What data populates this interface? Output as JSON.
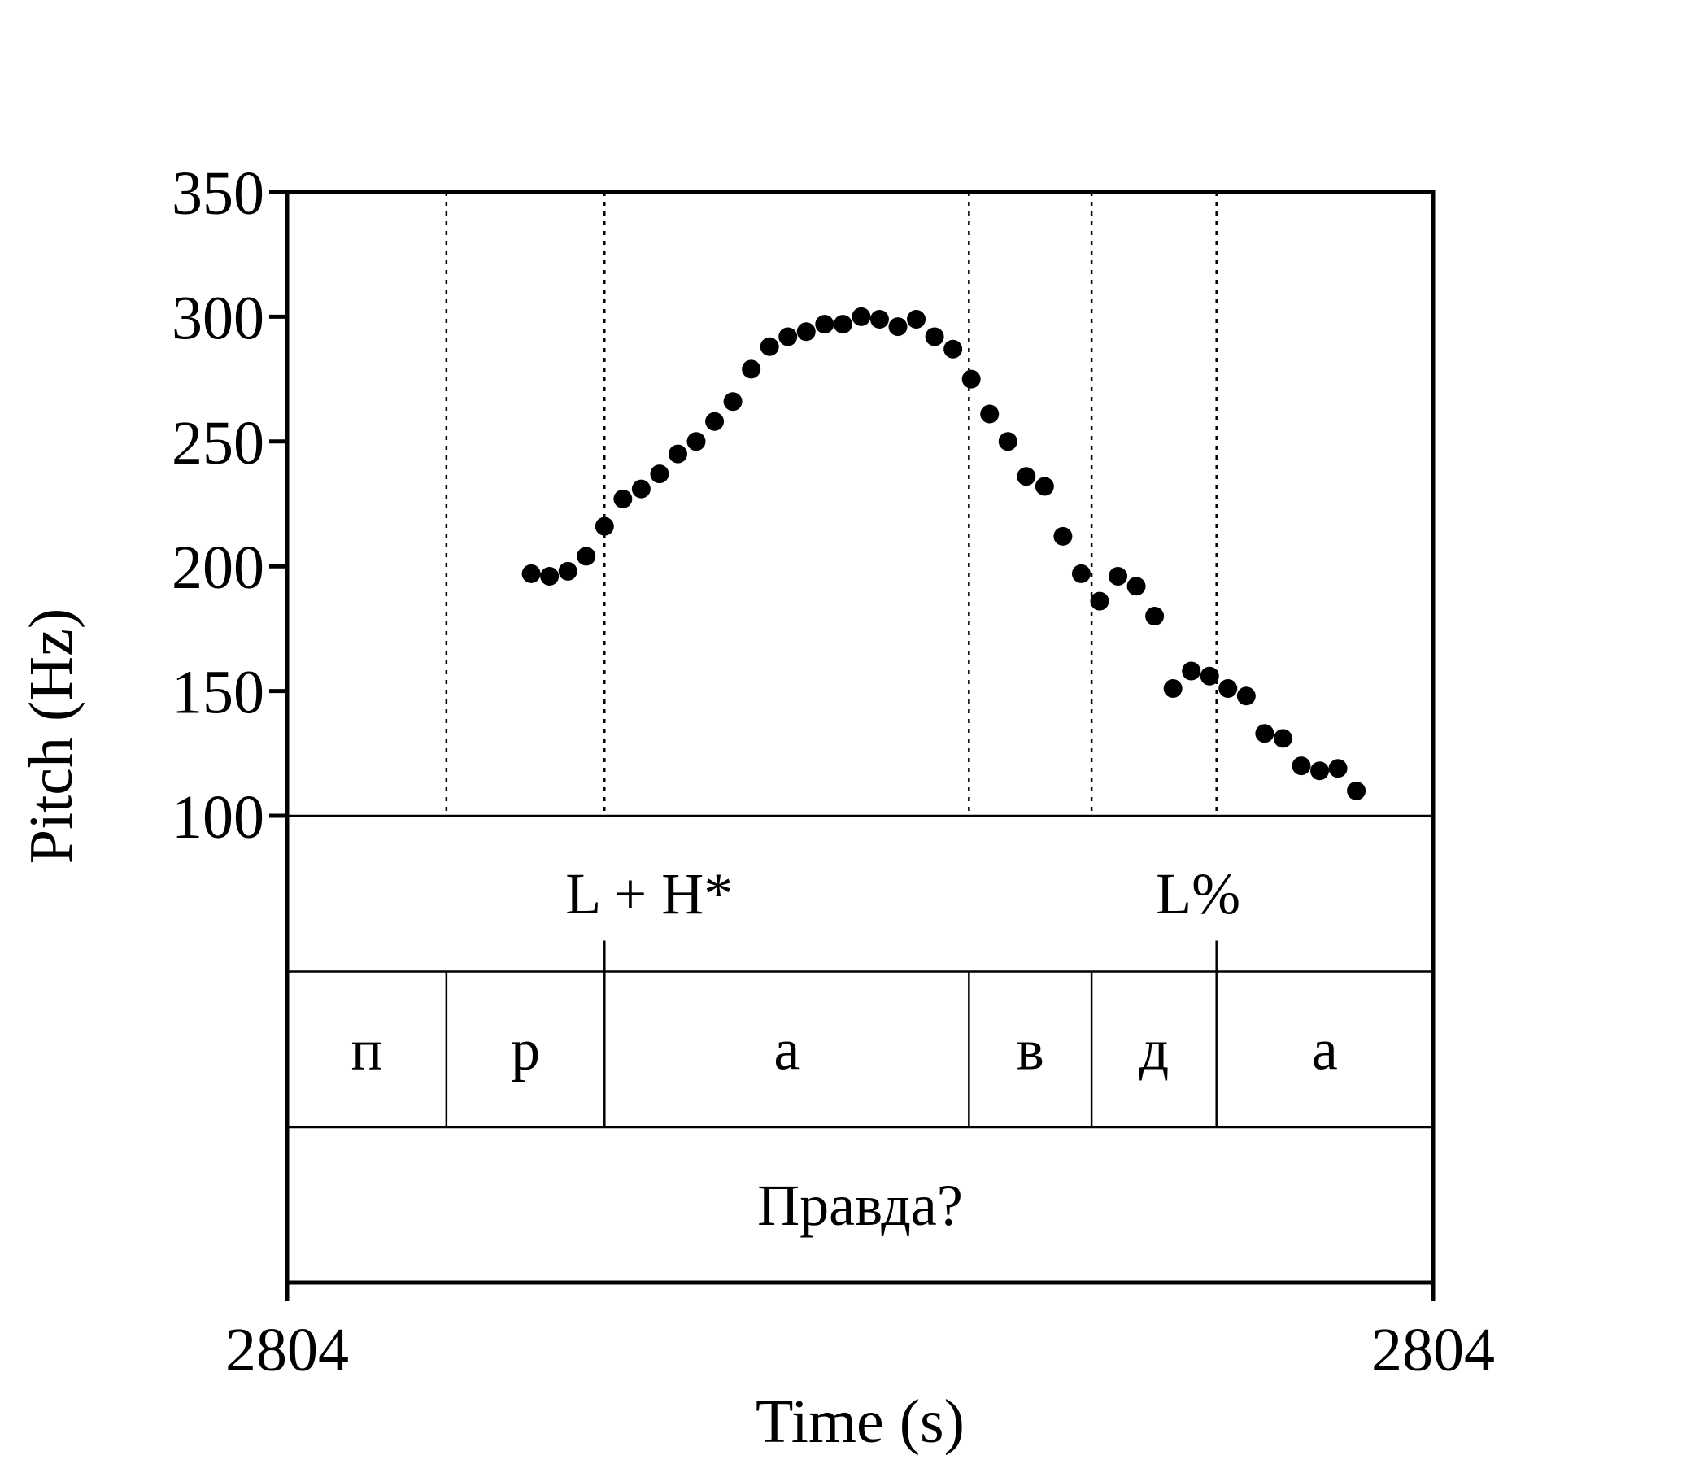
{
  "chart_data": {
    "type": "scatter",
    "xlabel": "Time (s)",
    "ylabel": "Pitch (Hz)",
    "ylim": [
      100,
      350
    ],
    "yticks": [
      100,
      150,
      200,
      250,
      300,
      350
    ],
    "x_range": [
      0,
      1
    ],
    "x_tick_labels": [
      "2804",
      "2804"
    ],
    "grid": false,
    "marker_color": "#000000",
    "points": [
      {
        "x": 0.213,
        "y": 197
      },
      {
        "x": 0.229,
        "y": 196
      },
      {
        "x": 0.245,
        "y": 198
      },
      {
        "x": 0.261,
        "y": 204
      },
      {
        "x": 0.277,
        "y": 216
      },
      {
        "x": 0.293,
        "y": 227
      },
      {
        "x": 0.309,
        "y": 231
      },
      {
        "x": 0.325,
        "y": 237
      },
      {
        "x": 0.341,
        "y": 245
      },
      {
        "x": 0.357,
        "y": 250
      },
      {
        "x": 0.373,
        "y": 258
      },
      {
        "x": 0.389,
        "y": 266
      },
      {
        "x": 0.405,
        "y": 279
      },
      {
        "x": 0.421,
        "y": 288
      },
      {
        "x": 0.437,
        "y": 292
      },
      {
        "x": 0.453,
        "y": 294
      },
      {
        "x": 0.469,
        "y": 297
      },
      {
        "x": 0.485,
        "y": 297
      },
      {
        "x": 0.501,
        "y": 300
      },
      {
        "x": 0.517,
        "y": 299
      },
      {
        "x": 0.533,
        "y": 296
      },
      {
        "x": 0.549,
        "y": 299
      },
      {
        "x": 0.565,
        "y": 292
      },
      {
        "x": 0.581,
        "y": 287
      },
      {
        "x": 0.597,
        "y": 275
      },
      {
        "x": 0.613,
        "y": 261
      },
      {
        "x": 0.629,
        "y": 250
      },
      {
        "x": 0.645,
        "y": 236
      },
      {
        "x": 0.661,
        "y": 232
      },
      {
        "x": 0.677,
        "y": 212
      },
      {
        "x": 0.693,
        "y": 197
      },
      {
        "x": 0.709,
        "y": 186
      },
      {
        "x": 0.725,
        "y": 196
      },
      {
        "x": 0.741,
        "y": 192
      },
      {
        "x": 0.757,
        "y": 180
      },
      {
        "x": 0.773,
        "y": 151
      },
      {
        "x": 0.789,
        "y": 158
      },
      {
        "x": 0.805,
        "y": 156
      },
      {
        "x": 0.821,
        "y": 151
      },
      {
        "x": 0.837,
        "y": 148
      },
      {
        "x": 0.853,
        "y": 133
      },
      {
        "x": 0.869,
        "y": 131
      },
      {
        "x": 0.885,
        "y": 120
      },
      {
        "x": 0.901,
        "y": 118
      },
      {
        "x": 0.917,
        "y": 119
      },
      {
        "x": 0.933,
        "y": 110
      }
    ],
    "boundaries": [
      0.139,
      0.277,
      0.595,
      0.702,
      0.811
    ],
    "tiers": [
      {
        "name": "tones",
        "intervals": [
          {
            "start": 0.0,
            "end": 0.277,
            "label": "L"
          },
          {
            "start": 0.277,
            "end": 0.811,
            "label": "+H*"
          },
          {
            "start": 0.811,
            "end": 1.0,
            "label": "L%"
          }
        ],
        "display": [
          {
            "text": "L + H*",
            "x": 0.316
          },
          {
            "text": "L%",
            "x": 0.795
          }
        ],
        "divider_positions": [
          0.277,
          0.811
        ]
      },
      {
        "name": "segments",
        "intervals": [
          {
            "start": 0.0,
            "end": 0.139,
            "label": "п"
          },
          {
            "start": 0.139,
            "end": 0.277,
            "label": "р"
          },
          {
            "start": 0.277,
            "end": 0.595,
            "label": "а"
          },
          {
            "start": 0.595,
            "end": 0.702,
            "label": "в"
          },
          {
            "start": 0.702,
            "end": 0.811,
            "label": "д"
          },
          {
            "start": 0.811,
            "end": 1.0,
            "label": "а"
          }
        ]
      },
      {
        "name": "word",
        "intervals": [
          {
            "start": 0.0,
            "end": 1.0,
            "label": "Правда?"
          }
        ]
      }
    ]
  }
}
